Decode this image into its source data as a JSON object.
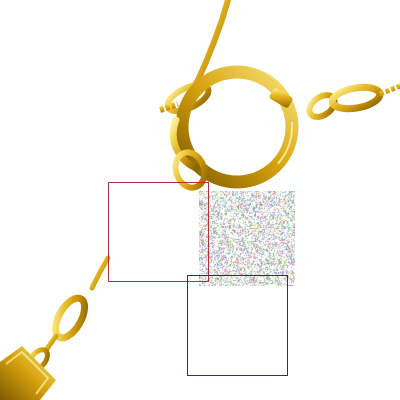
{
  "image": {
    "subject": "gold-chain-with-spring-ring-clasp",
    "background_color": "#ffffff",
    "metal_color": "#d9a912",
    "metal_highlight": "#fff3a0",
    "metal_shadow": "#8a6400"
  },
  "overlays": {
    "red_box_color": "#b1303c",
    "blue_box_color": "#2b2f7a",
    "noise_patch": "random-color-noise"
  }
}
